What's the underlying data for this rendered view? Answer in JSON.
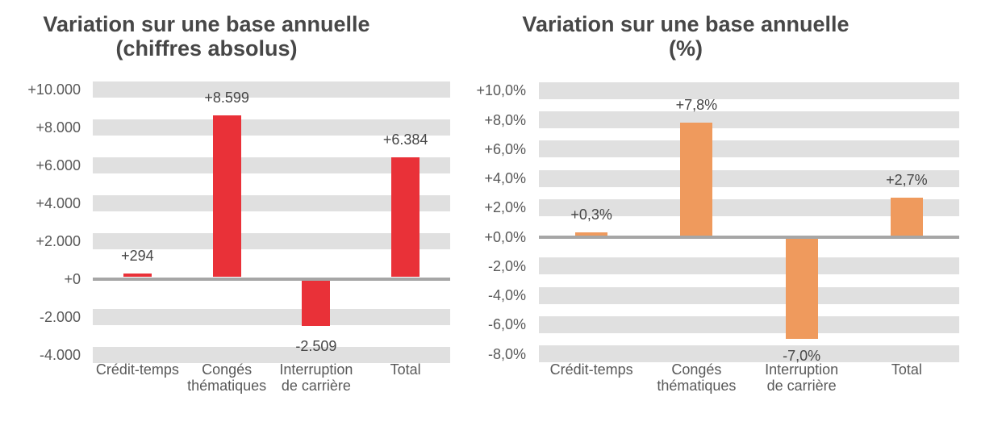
{
  "colors": {
    "background": "#ffffff",
    "band": "#e0e0e0",
    "zero_line": "#a6a6a6",
    "title_text": "#474747",
    "axis_text": "#595959",
    "data_label_text": "#474747",
    "red_bar": "#e93138",
    "orange_bar": "#ef9a5d"
  },
  "chart_data": [
    {
      "type": "bar",
      "title_lines": [
        "Variation sur une base annuelle",
        "(chiffres absolus)"
      ],
      "categories": [
        [
          "Crédit-temps"
        ],
        [
          "Congés",
          "thématiques"
        ],
        [
          "Interruption",
          "de carrière"
        ],
        [
          "Total"
        ]
      ],
      "values": [
        294,
        8599,
        -2509,
        6384
      ],
      "data_labels": [
        "+294",
        "+8.599",
        "-2.509",
        "+6.384"
      ],
      "y_ticks": [
        {
          "label": "+10.000",
          "value": 10000
        },
        {
          "label": "+8.000",
          "value": 8000
        },
        {
          "label": "+6.000",
          "value": 6000
        },
        {
          "label": "+4.000",
          "value": 4000
        },
        {
          "label": "+2.000",
          "value": 2000
        },
        {
          "label": "+0",
          "value": 0
        },
        {
          "label": "-2.000",
          "value": -2000
        },
        {
          "label": "-4.000",
          "value": -4000
        }
      ],
      "ylim": [
        -4000,
        10000
      ],
      "bar_color": "#e93138",
      "grid": "horizontal-gray-bands",
      "legend": "none",
      "xlabel": "",
      "ylabel": ""
    },
    {
      "type": "bar",
      "title_lines": [
        "Variation sur une base annuelle",
        "(%)"
      ],
      "categories": [
        [
          "Crédit-temps"
        ],
        [
          "Congés",
          "thématiques"
        ],
        [
          "Interruption",
          "de carrière"
        ],
        [
          "Total"
        ]
      ],
      "values": [
        0.3,
        7.8,
        -7.0,
        2.7
      ],
      "data_labels": [
        "+0,3%",
        "+7,8%",
        "-7,0%",
        "+2,7%"
      ],
      "y_ticks": [
        {
          "label": "+10,0%",
          "value": 10
        },
        {
          "label": "+8,0%",
          "value": 8
        },
        {
          "label": "+6,0%",
          "value": 6
        },
        {
          "label": "+4,0%",
          "value": 4
        },
        {
          "label": "+2,0%",
          "value": 2
        },
        {
          "label": "+0,0%",
          "value": 0
        },
        {
          "label": "-2,0%",
          "value": -2
        },
        {
          "label": "-4,0%",
          "value": -4
        },
        {
          "label": "-6,0%",
          "value": -6
        },
        {
          "label": "-8,0%",
          "value": -8
        }
      ],
      "ylim": [
        -8,
        10
      ],
      "bar_color": "#ef9a5d",
      "grid": "horizontal-gray-bands",
      "legend": "none",
      "xlabel": "",
      "ylabel": ""
    }
  ]
}
